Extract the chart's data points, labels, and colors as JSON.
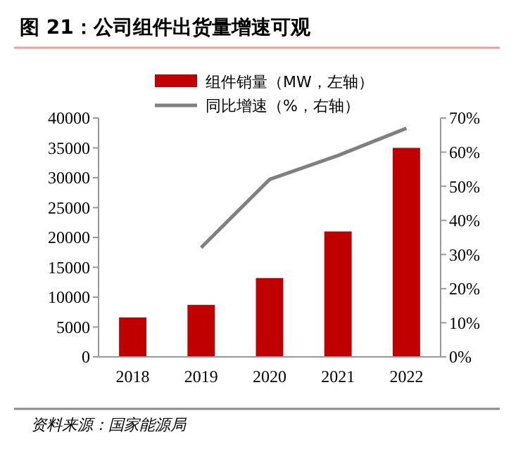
{
  "chart_data": {
    "type": "bar",
    "title": "图 21：公司组件出货量增速可观",
    "categories": [
      "2018",
      "2019",
      "2020",
      "2021",
      "2022"
    ],
    "series": [
      {
        "name": "组件销量（MW，左轴）",
        "color": "#c00000",
        "values": [
          6600,
          8700,
          13200,
          21000,
          35000
        ]
      },
      {
        "name": "同比增速（%，右轴）",
        "type": "line",
        "axis": "y2",
        "color": "#808080",
        "values": [
          null,
          32,
          52,
          59,
          67
        ]
      }
    ],
    "ylim": [
      0,
      40000
    ],
    "yticks": [
      0,
      5000,
      10000,
      15000,
      20000,
      25000,
      30000,
      35000,
      40000
    ],
    "y2lim": [
      0,
      70
    ],
    "y2ticks": [
      {
        "value": 0,
        "label": "0%"
      },
      {
        "value": 10,
        "label": "10%"
      },
      {
        "value": 20,
        "label": "20%"
      },
      {
        "value": 30,
        "label": "30%"
      },
      {
        "value": 40,
        "label": "40%"
      },
      {
        "value": 50,
        "label": "50%"
      },
      {
        "value": 60,
        "label": "60%"
      },
      {
        "value": 70,
        "label": "70%"
      }
    ],
    "legend": "top",
    "marker": "none",
    "line_style": "solid",
    "grid": false,
    "annotations": [
      "资料来源：国家能源局"
    ]
  }
}
